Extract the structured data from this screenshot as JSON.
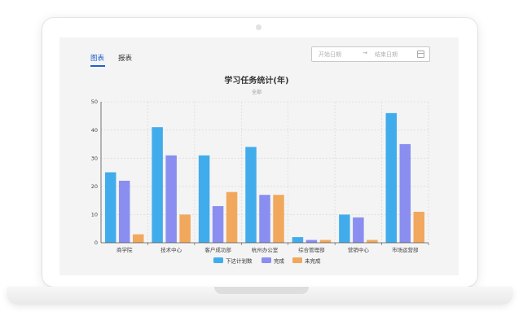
{
  "tabs": [
    {
      "label": "图表",
      "active": true
    },
    {
      "label": "报表",
      "active": false
    }
  ],
  "date_range": {
    "start_placeholder": "开始日期",
    "separator": "→",
    "end_placeholder": "结束日期"
  },
  "colors": {
    "series": [
      "#41acec",
      "#8a8ef0",
      "#f1a85d"
    ],
    "accent": "#1f5fd1"
  },
  "chart_data": {
    "type": "bar",
    "title": "学习任务统计(年)",
    "subtitle": "全部",
    "categories": [
      "商学院",
      "技术中心",
      "客户成功部",
      "杭州办公室",
      "综合管理部",
      "营销中心",
      "市场运营部"
    ],
    "series": [
      {
        "name": "下达计划数",
        "values": [
          25,
          41,
          31,
          34,
          2,
          10,
          46
        ]
      },
      {
        "name": "完成",
        "values": [
          22,
          31,
          13,
          17,
          1,
          9,
          35
        ]
      },
      {
        "name": "未完成",
        "values": [
          3,
          10,
          18,
          17,
          1,
          1,
          11
        ]
      }
    ],
    "ylim": [
      0,
      50
    ],
    "yticks": [
      0,
      10,
      20,
      30,
      40,
      50
    ],
    "grid": true,
    "legend": "bottom"
  }
}
